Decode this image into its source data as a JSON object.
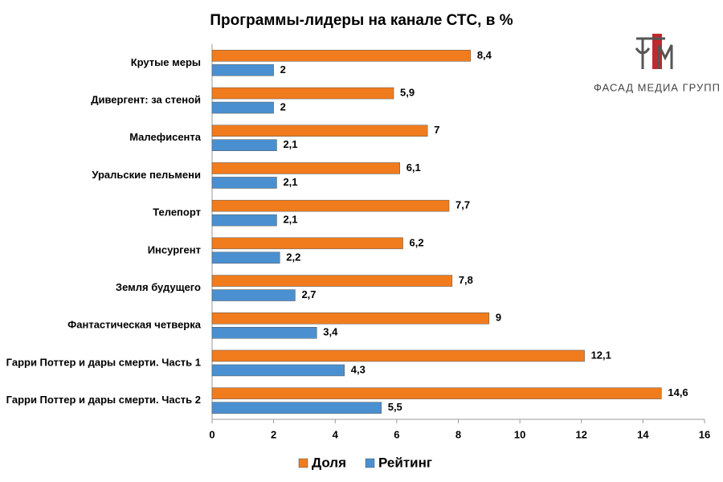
{
  "chart_data": {
    "type": "hbar",
    "title": "Программы-лидеры на канале СТС, в %",
    "categories": [
      "Крутые меры",
      "Дивергент: за стеной",
      "Малефисента",
      "Уральские пельмени",
      "Телепорт",
      "Инсургент",
      "Земля будущего",
      "Фантастическая четверка",
      "Гарри Поттер и дары смерти. Часть 1",
      "Гарри Поттер и дары смерти. Часть 2"
    ],
    "series": [
      {
        "name": "Доля",
        "color": "#f07c1e",
        "values": [
          8.4,
          5.9,
          7,
          6.1,
          7.7,
          6.2,
          7.8,
          9,
          12.1,
          14.6
        ],
        "value_labels": [
          "8,4",
          "5,9",
          "7",
          "6,1",
          "7,7",
          "6,2",
          "7,8",
          "9",
          "12,1",
          "14,6"
        ]
      },
      {
        "name": "Рейтинг",
        "color": "#4a90d0",
        "values": [
          2,
          2,
          2.1,
          2.1,
          2.1,
          2.2,
          2.7,
          3.4,
          4.3,
          5.5
        ],
        "value_labels": [
          "2",
          "2",
          "2,1",
          "2,1",
          "2,1",
          "2,2",
          "2,7",
          "3,4",
          "4,3",
          "5,5"
        ]
      }
    ],
    "xlim": [
      0,
      16
    ],
    "xticks": [
      0,
      2,
      4,
      6,
      8,
      10,
      12,
      14,
      16
    ],
    "grid": false,
    "legend": "bottom"
  },
  "logo": {
    "text": "ФАСАД МЕДИА ГРУПП"
  }
}
